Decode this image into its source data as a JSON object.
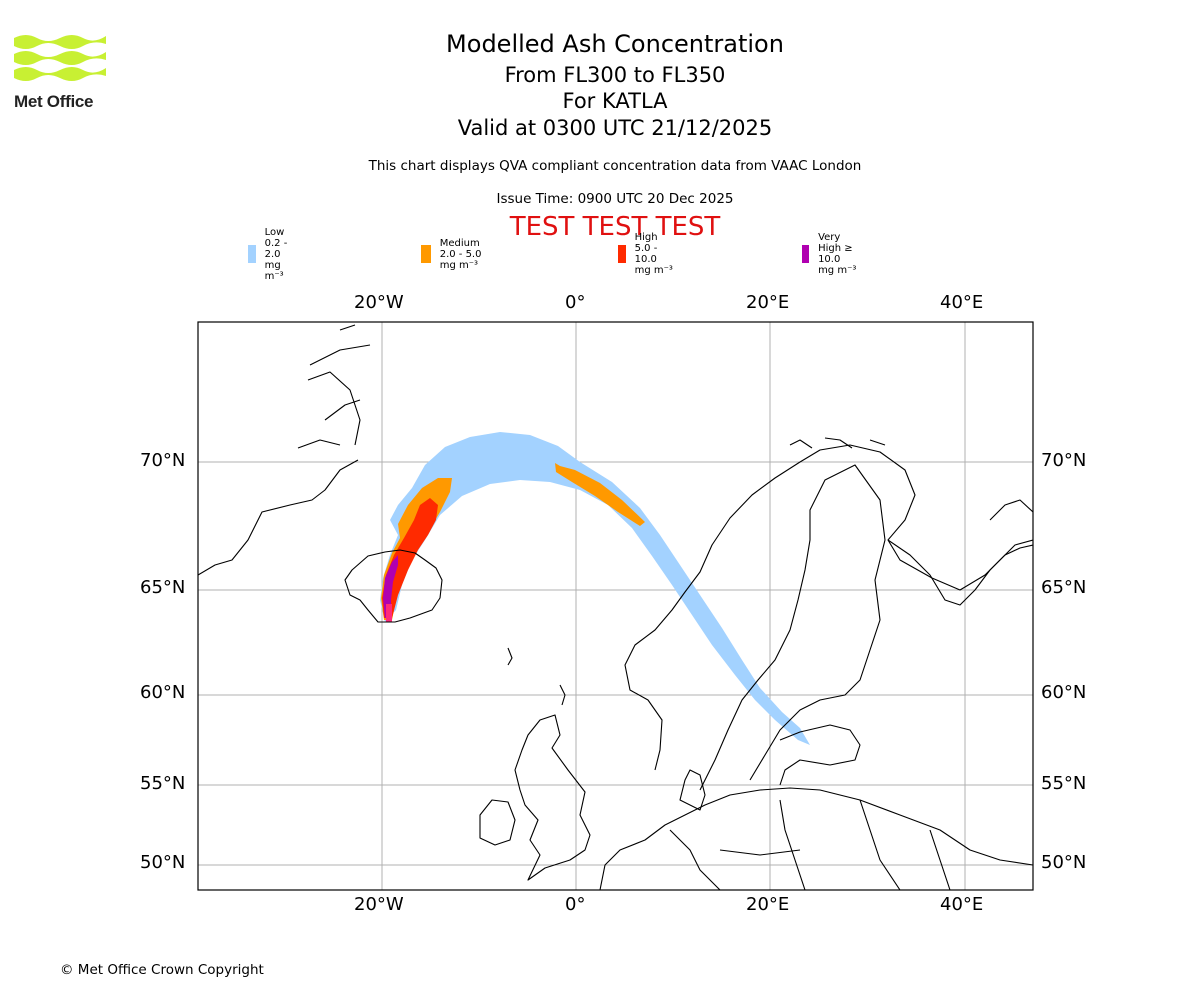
{
  "logo": {
    "text": "Met Office",
    "icon": "met-office-wave-logo",
    "color": "#c8f033"
  },
  "title": {
    "main": "Modelled Ash Concentration",
    "levels": "From FL300 to FL350",
    "volcano": "For KATLA",
    "valid": "Valid at 0300 UTC 21/12/2025"
  },
  "subtitle": "This chart displays QVA compliant concentration data from VAAC London",
  "issue_time": "Issue Time: 0900 UTC 20 Dec 2025",
  "test_banner": "TEST TEST TEST",
  "legend": [
    {
      "label": "Low 0.2 - 2.0 mg m⁻³",
      "color": "#a3d2ff"
    },
    {
      "label": "Medium 2.0 - 5.0 mg m⁻³",
      "color": "#ff9900"
    },
    {
      "label": "High 5.0 - 10.0 mg m⁻³",
      "color": "#ff2a00"
    },
    {
      "label": "Very High ≥ 10.0 mg m⁻³",
      "color": "#b000b0"
    }
  ],
  "axes": {
    "lon_ticks": [
      "20°W",
      "0°",
      "20°E",
      "40°E"
    ],
    "lat_ticks": [
      "70°N",
      "65°N",
      "60°N",
      "55°N",
      "50°N"
    ]
  },
  "copyright": "© Met Office Crown Copyright"
}
